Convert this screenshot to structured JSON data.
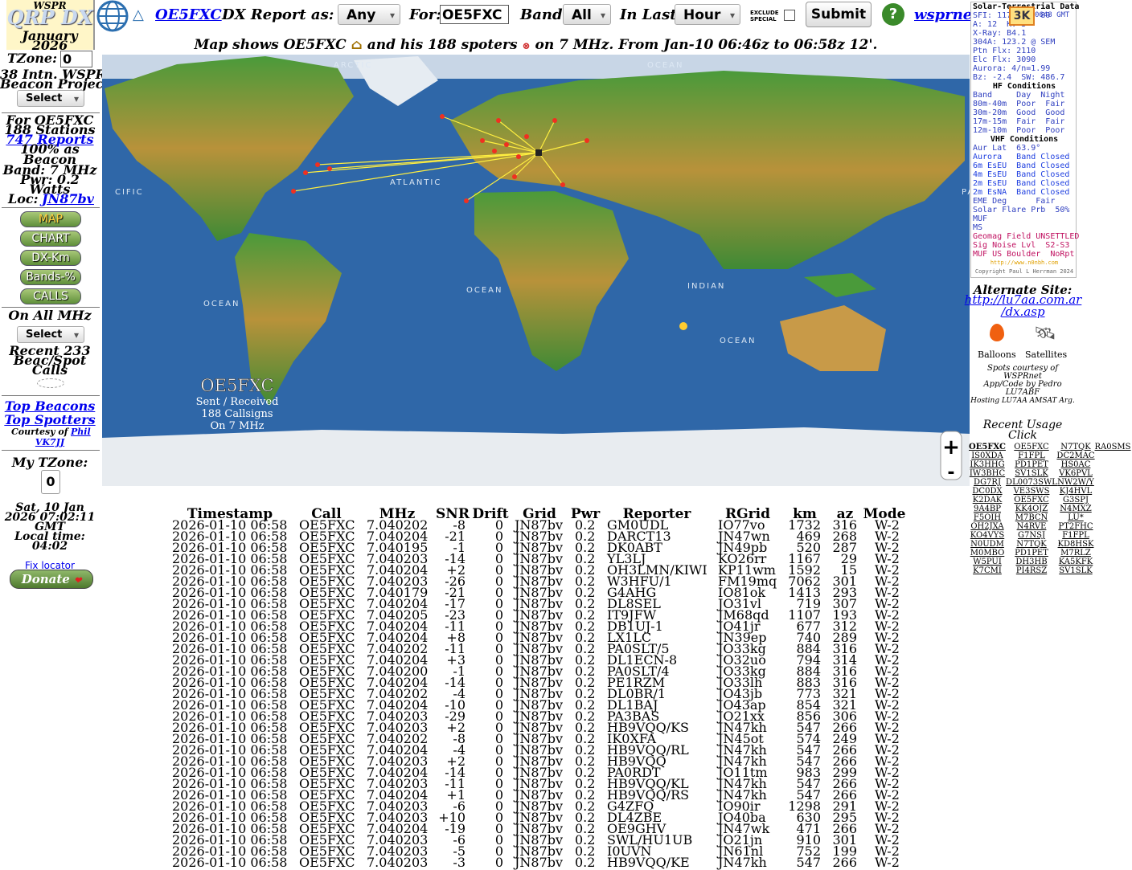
{
  "sidebar": {
    "wspr": "WSPR",
    "logo": "QRP DX",
    "month": "January",
    "year": "2026",
    "tzone_label": "TZone:",
    "tzone_value": "0",
    "project_1": "38 Intn. WSPR",
    "project_2": "Beacon Project",
    "select_1": "Select",
    "for_call": "For OE5FXC",
    "stations": "188 Stations",
    "reports": "747 Reports",
    "beacon_pct_1": "100% as",
    "beacon_pct_2": "Beacon",
    "band": "Band: 7 MHz",
    "pwr": "Pwr: 0.2",
    "watts": "Watts",
    "loc_label": "Loc:",
    "loc": "JN87bv",
    "buttons": [
      "MAP",
      "CHART",
      "DX-Km",
      "Bands-%",
      "CALLS"
    ],
    "all_mhz": "On All MHz",
    "select_2": "Select",
    "recent_1": "Recent 233",
    "recent_2": "Beac/Spot",
    "recent_3": "Calls",
    "top_beacons": "Top Beacons",
    "top_spotters": "Top Spotters",
    "courtesy": "Courtesy of",
    "phil": "Phil",
    "vk7jj": "VK7JJ",
    "my_tzone": "My TZone:",
    "my_tzone_value": "0",
    "date_1": "Sat, 10 Jan",
    "date_2": "2026 07:02:11",
    "date_3": "GMT",
    "local_label": "Local time:",
    "local_time": "04:02",
    "fix_locator": "Fix locator",
    "donate": "Donate"
  },
  "toolbar": {
    "triangle": "△",
    "call_link": "OE5FXC",
    "report_as": "DX Report as:",
    "any": "Any",
    "for_label": "For:",
    "for_value": "OE5FXC",
    "band_label": "Band:",
    "band_value": "All",
    "last_label": "In Last:",
    "last_value": "Hour",
    "exclude_1": "EXCLUDE",
    "exclude_2": "SPECIAL",
    "submit": "Submit",
    "help": "?",
    "wsprnet": "wsprnet.org",
    "badge": "3K"
  },
  "map": {
    "caption_1": "Map shows OE5FXC",
    "caption_2": "and his 188 spoters",
    "caption_3": "on 7 MHz. From Jan-10 06:46z to 06:58z 12'.",
    "callsign": "OE5FXC",
    "sub_1": "Sent / Received",
    "sub_2": "188 Callsigns",
    "sub_3": "On 7 MHz",
    "ocean_labels": [
      "ARCTIC",
      "OCEAN",
      "ATLANTIC",
      "CIFIC",
      "OCEAN",
      "OCEAN",
      "INDIAN",
      "OCEAN",
      "PA"
    ],
    "zoom_in": "+",
    "zoom_out": "-"
  },
  "solar": {
    "lines": [
      "Solar-Terrestrial Data",
      "SFI: 117  SN: 80",
      "A: 12  K: 3",
      "X-Ray: B4.1",
      "304A: 123.2 @ SEM",
      "Ptn Flx: 2110",
      "Elc Flx: 3090",
      "Aurora: 4/n=1.99",
      "Bz: -2.4  SW: 486.7",
      "HF Conditions",
      "Band     Day  Night",
      "80m-40m  Poor  Fair",
      "30m-20m  Good  Good",
      "17m-15m  Fair  Fair",
      "12m-10m  Poor  Poor",
      "VHF Conditions",
      "Aur Lat  63.9°",
      "Aurora   Band Closed",
      "6m EsEU  Band Closed",
      "4m EsEU  Band Closed",
      "2m EsEU  Band Closed",
      "2m EsNA  Band Closed",
      "EME Deg      Fair",
      "Solar Flare Prb  50%",
      "MUF",
      "MS",
      "Geomag Field UNSETTLED",
      "Sig Noise Lvl  S2-S3",
      "MUF US Boulder  NoRpt",
      "http://www.n0nbh.com",
      "Copyright Paul L Herrman 2024"
    ],
    "time": "0648 GMT"
  },
  "right": {
    "alt_site": "Alternate Site:",
    "alt_url_1": "http://lu7aa.com.ar",
    "alt_url_2": "/dx.asp",
    "balloons": "Balloons",
    "satellites": "Satellites",
    "spots_1": "Spots courtesy of",
    "spots_2": "WSPRnet",
    "app_1": "App/Code by Pedro",
    "app_2": "LU7ABF",
    "hosting": "Hosting LU7AA AMSAT Arg."
  },
  "recent_usage": {
    "title": "Recent Usage",
    "click": "Click",
    "calls": [
      [
        "OE5FXC",
        "OE5FXC",
        "N7TQK",
        "RA0SMS"
      ],
      [
        "IS0XDA",
        "F1FPL",
        "DC2MAC"
      ],
      [
        "IK3HHG",
        "PD1PET",
        "HS0AC"
      ],
      [
        "IW3BHC",
        "SV1SLK",
        "VK6PVL"
      ],
      [
        "DG7RJ",
        "DL0073SWL",
        "NW2W/Y"
      ],
      [
        "DC0DX",
        "VE3SWS",
        "KJ4HVL"
      ],
      [
        "K2DAK",
        "OE5FXC",
        "G3SPJ"
      ],
      [
        "9A4BP",
        "KK4OJZ",
        "N4MXZ"
      ],
      [
        "F5OIH",
        "M7BCN",
        "LU*"
      ],
      [
        "OH2JXA",
        "N4RVE",
        "PT2FHC"
      ],
      [
        "KO4VYS",
        "G7NSJ",
        "F1FPL"
      ],
      [
        "N0UDM",
        "N7TQK",
        "KD8HSK"
      ],
      [
        "M0MBO",
        "PD1PET",
        "M7RLZ"
      ],
      [
        "W5PUI",
        "DH3HB",
        "KA5KFK"
      ],
      [
        "K7CMI",
        "PI4RSZ",
        "SV1SLK"
      ]
    ]
  },
  "table": {
    "header": [
      "Timestamp",
      "Call",
      "MHz",
      "SNR",
      "Drift",
      "Grid",
      "Pwr",
      "Reporter",
      "RGrid",
      "km",
      "az",
      "Mode"
    ],
    "rows": [
      [
        "2026-01-10 06:58",
        "OE5FXC",
        "7.040202",
        "-8",
        "0",
        "JN87bv",
        "0.2",
        "GM0UDL",
        "IO77vo",
        "1732",
        "316",
        "W-2"
      ],
      [
        "2026-01-10 06:58",
        "OE5FXC",
        "7.040204",
        "-21",
        "0",
        "JN87bv",
        "0.2",
        "DARCT13",
        "JN47wn",
        "469",
        "268",
        "W-2"
      ],
      [
        "2026-01-10 06:58",
        "OE5FXC",
        "7.040195",
        "-1",
        "0",
        "JN87bv",
        "0.2",
        "DK0ABT",
        "JN49pb",
        "520",
        "287",
        "W-2"
      ],
      [
        "2026-01-10 06:58",
        "OE5FXC",
        "7.040203",
        "-14",
        "0",
        "JN87bv",
        "0.2",
        "YL3LJ",
        "KO26rr",
        "1167",
        "29",
        "W-2"
      ],
      [
        "2026-01-10 06:58",
        "OE5FXC",
        "7.040204",
        "+2",
        "0",
        "JN87bv",
        "0.2",
        "OH3LMN/KIWI",
        "KP11wm",
        "1592",
        "15",
        "W-2"
      ],
      [
        "2026-01-10 06:58",
        "OE5FXC",
        "7.040203",
        "-26",
        "0",
        "JN87bv",
        "0.2",
        "W3HFU/1",
        "FM19mq",
        "7062",
        "301",
        "W-2"
      ],
      [
        "2026-01-10 06:58",
        "OE5FXC",
        "7.040179",
        "-21",
        "0",
        "JN87bv",
        "0.2",
        "G4AHG",
        "IO81ok",
        "1413",
        "293",
        "W-2"
      ],
      [
        "2026-01-10 06:58",
        "OE5FXC",
        "7.040204",
        "-17",
        "0",
        "JN87bv",
        "0.2",
        "DL8SEL",
        "JO31vl",
        "719",
        "307",
        "W-2"
      ],
      [
        "2026-01-10 06:58",
        "OE5FXC",
        "7.040205",
        "-23",
        "0",
        "JN87bv",
        "0.2",
        "IT9JFW",
        "JM68qd",
        "1107",
        "193",
        "W-2"
      ],
      [
        "2026-01-10 06:58",
        "OE5FXC",
        "7.040204",
        "-11",
        "0",
        "JN87bv",
        "0.2",
        "DB1UJ-1",
        "JO41jr",
        "677",
        "312",
        "W-2"
      ],
      [
        "2026-01-10 06:58",
        "OE5FXC",
        "7.040204",
        "+8",
        "0",
        "JN87bv",
        "0.2",
        "LX1LC",
        "JN39ep",
        "740",
        "289",
        "W-2"
      ],
      [
        "2026-01-10 06:58",
        "OE5FXC",
        "7.040202",
        "-11",
        "0",
        "JN87bv",
        "0.2",
        "PA0SLT/5",
        "JO33kg",
        "884",
        "316",
        "W-2"
      ],
      [
        "2026-01-10 06:58",
        "OE5FXC",
        "7.040204",
        "+3",
        "0",
        "JN87bv",
        "0.2",
        "DL1ECN-8",
        "JO32uo",
        "794",
        "314",
        "W-2"
      ],
      [
        "2026-01-10 06:58",
        "OE5FXC",
        "7.040200",
        "-1",
        "0",
        "JN87bv",
        "0.2",
        "PA0SLT/4",
        "JO33kg",
        "884",
        "316",
        "W-2"
      ],
      [
        "2026-01-10 06:58",
        "OE5FXC",
        "7.040204",
        "-14",
        "0",
        "JN87bv",
        "0.2",
        "PE1RZM",
        "JO33lh",
        "883",
        "316",
        "W-2"
      ],
      [
        "2026-01-10 06:58",
        "OE5FXC",
        "7.040202",
        "-4",
        "0",
        "JN87bv",
        "0.2",
        "DL0BR/1",
        "JO43jb",
        "773",
        "321",
        "W-2"
      ],
      [
        "2026-01-10 06:58",
        "OE5FXC",
        "7.040204",
        "-10",
        "0",
        "JN87bv",
        "0.2",
        "DL1BAJ",
        "JO43ap",
        "854",
        "321",
        "W-2"
      ],
      [
        "2026-01-10 06:58",
        "OE5FXC",
        "7.040203",
        "-29",
        "0",
        "JN87bv",
        "0.2",
        "PA3BAS",
        "JO21xx",
        "856",
        "306",
        "W-2"
      ],
      [
        "2026-01-10 06:58",
        "OE5FXC",
        "7.040203",
        "+2",
        "0",
        "JN87bv",
        "0.2",
        "HB9VQQ/KS",
        "JN47kh",
        "547",
        "266",
        "W-2"
      ],
      [
        "2026-01-10 06:58",
        "OE5FXC",
        "7.040202",
        "-8",
        "0",
        "JN87bv",
        "0.2",
        "IK0XFA",
        "JN45ot",
        "574",
        "249",
        "W-2"
      ],
      [
        "2026-01-10 06:58",
        "OE5FXC",
        "7.040204",
        "-4",
        "0",
        "JN87bv",
        "0.2",
        "HB9VQQ/RL",
        "JN47kh",
        "547",
        "266",
        "W-2"
      ],
      [
        "2026-01-10 06:58",
        "OE5FXC",
        "7.040203",
        "+2",
        "0",
        "JN87bv",
        "0.2",
        "HB9VQQ",
        "JN47kh",
        "547",
        "266",
        "W-2"
      ],
      [
        "2026-01-10 06:58",
        "OE5FXC",
        "7.040204",
        "-14",
        "0",
        "JN87bv",
        "0.2",
        "PA0RDT",
        "JO11tm",
        "983",
        "299",
        "W-2"
      ],
      [
        "2026-01-10 06:58",
        "OE5FXC",
        "7.040203",
        "-11",
        "0",
        "JN87bv",
        "0.2",
        "HB9VQQ/KL",
        "JN47kh",
        "547",
        "266",
        "W-2"
      ],
      [
        "2026-01-10 06:58",
        "OE5FXC",
        "7.040204",
        "+1",
        "0",
        "JN87bv",
        "0.2",
        "HB9VQQ/RS",
        "JN47kh",
        "547",
        "266",
        "W-2"
      ],
      [
        "2026-01-10 06:58",
        "OE5FXC",
        "7.040203",
        "-6",
        "0",
        "JN87bv",
        "0.2",
        "G4ZFQ",
        "IO90ir",
        "1298",
        "291",
        "W-2"
      ],
      [
        "2026-01-10 06:58",
        "OE5FXC",
        "7.040203",
        "+10",
        "0",
        "JN87bv",
        "0.2",
        "DL4ZBE",
        "JO40ba",
        "630",
        "295",
        "W-2"
      ],
      [
        "2026-01-10 06:58",
        "OE5FXC",
        "7.040204",
        "-19",
        "0",
        "JN87bv",
        "0.2",
        "OE9GHV",
        "JN47wk",
        "471",
        "266",
        "W-2"
      ],
      [
        "2026-01-10 06:58",
        "OE5FXC",
        "7.040203",
        "-6",
        "0",
        "JN87bv",
        "0.2",
        "SWL/HU1UB",
        "JO21jn",
        "910",
        "301",
        "W-2"
      ],
      [
        "2026-01-10 06:58",
        "OE5FXC",
        "7.040203",
        "-5",
        "0",
        "JN87bv",
        "0.2",
        "I0UVN",
        "JN61nl",
        "752",
        "199",
        "W-2"
      ],
      [
        "2026-01-10 06:58",
        "OE5FXC",
        "7.040203",
        "-3",
        "0",
        "JN87bv",
        "0.2",
        "HB9VQQ/KE",
        "JN47kh",
        "547",
        "266",
        "W-2"
      ]
    ]
  }
}
